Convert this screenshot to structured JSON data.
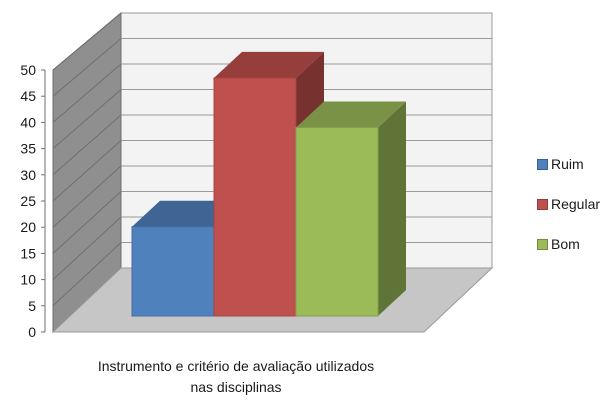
{
  "chart_data": {
    "type": "bar",
    "categories": [
      "Instrumento e critério de avaliação utilizados nas disciplinas"
    ],
    "series": [
      {
        "name": "Ruim",
        "values": [
          18
        ],
        "color": "#4f81bd"
      },
      {
        "name": "Regular",
        "values": [
          48
        ],
        "color": "#c0504d"
      },
      {
        "name": "Bom",
        "values": [
          38
        ],
        "color": "#9bbb59"
      }
    ],
    "xlabel_lines": [
      "Instrumento e critério de avaliação utilizados",
      "nas disciplinas"
    ],
    "ylim": [
      0,
      50
    ],
    "yticks": [
      "0",
      "5",
      "10",
      "15",
      "20",
      "25",
      "30",
      "35",
      "40",
      "45",
      "50"
    ],
    "grid": true,
    "legend_position": "right",
    "style": "3d-column"
  }
}
